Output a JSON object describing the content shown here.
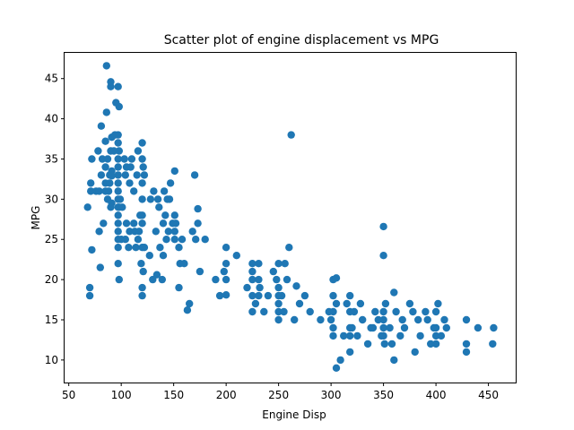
{
  "chart_data": {
    "type": "scatter",
    "title": "Scatter plot of engine displacement vs MPG",
    "xlabel": "Engine Disp",
    "ylabel": "MPG",
    "xlim": [
      46,
      476
    ],
    "ylim": [
      7.2,
      48.2
    ],
    "xticks": [
      50,
      100,
      150,
      200,
      250,
      300,
      350,
      400,
      450
    ],
    "yticks": [
      10,
      15,
      20,
      25,
      30,
      35,
      40,
      45
    ],
    "grid": false,
    "legend": "none",
    "marker_color": "#1f77b4",
    "points": [
      [
        68,
        29
      ],
      [
        70,
        18
      ],
      [
        70,
        19
      ],
      [
        71,
        31
      ],
      [
        71,
        32
      ],
      [
        72,
        35
      ],
      [
        72,
        23.7
      ],
      [
        76,
        31
      ],
      [
        78,
        36
      ],
      [
        79,
        31
      ],
      [
        79,
        26
      ],
      [
        80,
        21.5
      ],
      [
        81,
        39.1
      ],
      [
        81,
        33
      ],
      [
        82,
        35
      ],
      [
        83,
        27
      ],
      [
        85,
        31
      ],
      [
        85,
        32
      ],
      [
        85,
        34
      ],
      [
        85,
        37.2
      ],
      [
        86,
        40.8
      ],
      [
        86,
        46.6
      ],
      [
        87,
        30
      ],
      [
        88,
        31
      ],
      [
        89,
        32
      ],
      [
        89,
        33
      ],
      [
        90,
        44
      ],
      [
        90,
        44.6
      ],
      [
        90,
        36
      ],
      [
        90,
        29
      ],
      [
        91,
        29.5
      ],
      [
        91,
        33.5
      ],
      [
        91,
        37.7
      ],
      [
        91,
        32.9
      ],
      [
        97,
        25
      ],
      [
        97,
        26
      ],
      [
        97,
        27
      ],
      [
        97,
        28
      ],
      [
        97,
        29
      ],
      [
        97,
        30
      ],
      [
        97,
        31
      ],
      [
        97,
        32
      ],
      [
        97,
        33
      ],
      [
        97,
        34
      ],
      [
        97,
        35
      ],
      [
        97,
        37
      ],
      [
        97,
        38
      ],
      [
        97,
        44
      ],
      [
        97,
        24
      ],
      [
        97,
        22
      ],
      [
        98,
        20
      ],
      [
        98,
        29
      ],
      [
        98,
        36
      ],
      [
        98,
        41.5
      ],
      [
        100,
        25
      ],
      [
        104,
        25
      ],
      [
        105,
        27
      ],
      [
        105,
        34
      ],
      [
        107,
        24
      ],
      [
        108,
        26
      ],
      [
        108,
        32
      ],
      [
        112,
        27
      ],
      [
        112,
        31
      ],
      [
        113,
        26
      ],
      [
        114,
        24
      ],
      [
        116,
        25
      ],
      [
        119,
        22
      ],
      [
        120,
        24
      ],
      [
        120,
        27
      ],
      [
        120,
        28
      ],
      [
        120,
        30
      ],
      [
        120,
        32
      ],
      [
        120,
        35
      ],
      [
        120,
        37
      ],
      [
        120,
        18
      ],
      [
        120,
        19
      ],
      [
        121,
        21
      ],
      [
        122,
        24
      ],
      [
        130,
        20
      ],
      [
        134,
        20.6
      ],
      [
        135,
        30
      ],
      [
        140,
        23
      ],
      [
        140,
        27
      ],
      [
        141,
        31
      ],
      [
        144,
        30
      ],
      [
        146,
        30
      ],
      [
        151,
        25
      ],
      [
        151,
        28
      ],
      [
        151,
        33.5
      ],
      [
        151,
        26
      ],
      [
        155,
        19
      ],
      [
        156,
        22
      ],
      [
        163,
        16.2
      ],
      [
        168,
        26
      ],
      [
        171,
        25
      ],
      [
        173,
        28.8
      ],
      [
        173,
        27
      ],
      [
        200,
        18.1
      ],
      [
        200,
        20
      ],
      [
        200,
        22
      ],
      [
        200,
        24
      ],
      [
        225,
        16
      ],
      [
        225,
        18
      ],
      [
        225,
        20
      ],
      [
        225,
        21
      ],
      [
        225,
        22
      ],
      [
        231,
        18
      ],
      [
        231,
        20
      ],
      [
        231,
        22
      ],
      [
        250,
        15
      ],
      [
        250,
        16
      ],
      [
        250,
        17
      ],
      [
        250,
        18
      ],
      [
        250,
        19
      ],
      [
        250,
        22
      ],
      [
        258,
        20
      ],
      [
        262,
        38
      ],
      [
        267,
        19.2
      ],
      [
        302,
        13
      ],
      [
        302,
        14
      ],
      [
        302,
        16
      ],
      [
        302,
        18
      ],
      [
        302,
        20
      ],
      [
        305,
        9
      ],
      [
        305,
        17
      ],
      [
        305,
        20.2
      ],
      [
        318,
        11
      ],
      [
        318,
        13
      ],
      [
        318,
        14
      ],
      [
        318,
        16
      ],
      [
        318,
        18
      ],
      [
        340,
        14
      ],
      [
        350,
        13
      ],
      [
        350,
        14
      ],
      [
        350,
        15
      ],
      [
        350,
        16
      ],
      [
        350,
        23
      ],
      [
        350,
        26.6
      ],
      [
        351,
        12
      ],
      [
        360,
        10
      ],
      [
        360,
        18.4
      ],
      [
        383,
        15
      ],
      [
        400,
        12
      ],
      [
        400,
        13
      ],
      [
        400,
        14
      ],
      [
        400,
        16
      ],
      [
        429,
        11
      ],
      [
        429,
        12
      ],
      [
        429,
        15
      ],
      [
        440,
        14
      ],
      [
        454,
        12
      ],
      [
        455,
        14
      ],
      [
        87,
        35
      ],
      [
        93,
        36
      ],
      [
        94,
        38
      ],
      [
        95,
        42
      ],
      [
        99,
        30
      ],
      [
        101,
        29
      ],
      [
        103,
        35
      ],
      [
        104,
        33
      ],
      [
        109,
        34
      ],
      [
        110,
        35
      ],
      [
        115,
        33
      ],
      [
        116,
        36
      ],
      [
        117,
        26
      ],
      [
        118,
        28
      ],
      [
        121,
        34
      ],
      [
        122,
        33
      ],
      [
        127,
        23
      ],
      [
        128,
        30
      ],
      [
        131,
        31
      ],
      [
        133,
        26
      ],
      [
        136,
        29
      ],
      [
        137,
        24
      ],
      [
        139,
        20
      ],
      [
        142,
        28
      ],
      [
        143,
        25
      ],
      [
        145,
        26
      ],
      [
        147,
        32
      ],
      [
        149,
        27
      ],
      [
        152,
        27
      ],
      [
        155,
        24
      ],
      [
        158,
        25
      ],
      [
        160,
        22
      ],
      [
        165,
        17
      ],
      [
        170,
        33
      ],
      [
        175,
        21
      ],
      [
        180,
        25
      ],
      [
        190,
        20
      ],
      [
        194,
        18
      ],
      [
        198,
        21
      ],
      [
        210,
        23
      ],
      [
        220,
        19
      ],
      [
        228,
        17
      ],
      [
        232,
        19
      ],
      [
        236,
        16
      ],
      [
        240,
        18
      ],
      [
        245,
        21
      ],
      [
        248,
        20
      ],
      [
        253,
        18
      ],
      [
        255,
        16
      ],
      [
        256,
        22
      ],
      [
        260,
        24
      ],
      [
        265,
        15
      ],
      [
        270,
        17
      ],
      [
        275,
        18
      ],
      [
        280,
        16
      ],
      [
        290,
        15
      ],
      [
        298,
        16
      ],
      [
        300,
        15
      ],
      [
        309,
        10
      ],
      [
        312,
        13
      ],
      [
        315,
        17
      ],
      [
        320,
        14
      ],
      [
        322,
        16
      ],
      [
        325,
        13
      ],
      [
        328,
        17
      ],
      [
        330,
        15
      ],
      [
        335,
        12
      ],
      [
        338,
        14
      ],
      [
        342,
        16
      ],
      [
        345,
        15
      ],
      [
        348,
        13
      ],
      [
        352,
        17
      ],
      [
        356,
        14
      ],
      [
        358,
        12
      ],
      [
        362,
        16
      ],
      [
        366,
        13
      ],
      [
        368,
        15
      ],
      [
        370,
        14
      ],
      [
        375,
        17
      ],
      [
        378,
        16
      ],
      [
        380,
        11
      ],
      [
        385,
        13
      ],
      [
        390,
        16
      ],
      [
        392,
        15
      ],
      [
        395,
        12
      ],
      [
        398,
        14
      ],
      [
        402,
        17
      ],
      [
        405,
        13
      ],
      [
        408,
        15
      ],
      [
        410,
        14
      ]
    ]
  }
}
